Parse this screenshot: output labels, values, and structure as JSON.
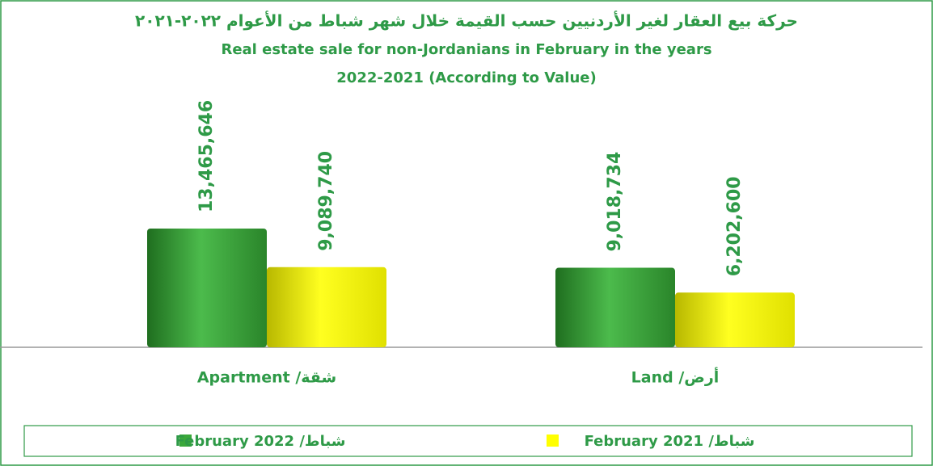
{
  "chart_data": {
    "type": "bar",
    "title": "حركة بيع العقار لغير الأردنيين حسب القيمة خلال شهر شباط من الأعوام  ٢٠٢٢-٢٠٢١",
    "subtitle": [
      "Real estate sale  for non-Jordanians in February in the years",
      "2022-2021 (According to Value)"
    ],
    "categories": [
      "شقة/ Apartment",
      "أرض/ Land"
    ],
    "series": [
      {
        "name": "شباط/ February 2022",
        "color": "#3aa83a",
        "values": [
          13465646,
          9018734
        ],
        "value_labels": [
          "13,465,646",
          "9,018,734"
        ]
      },
      {
        "name": "شباط/ February 2021",
        "color": "#ffff00",
        "values": [
          9089740,
          6202600
        ],
        "value_labels": [
          "9,089,740",
          "6,202,600"
        ]
      }
    ]
  }
}
